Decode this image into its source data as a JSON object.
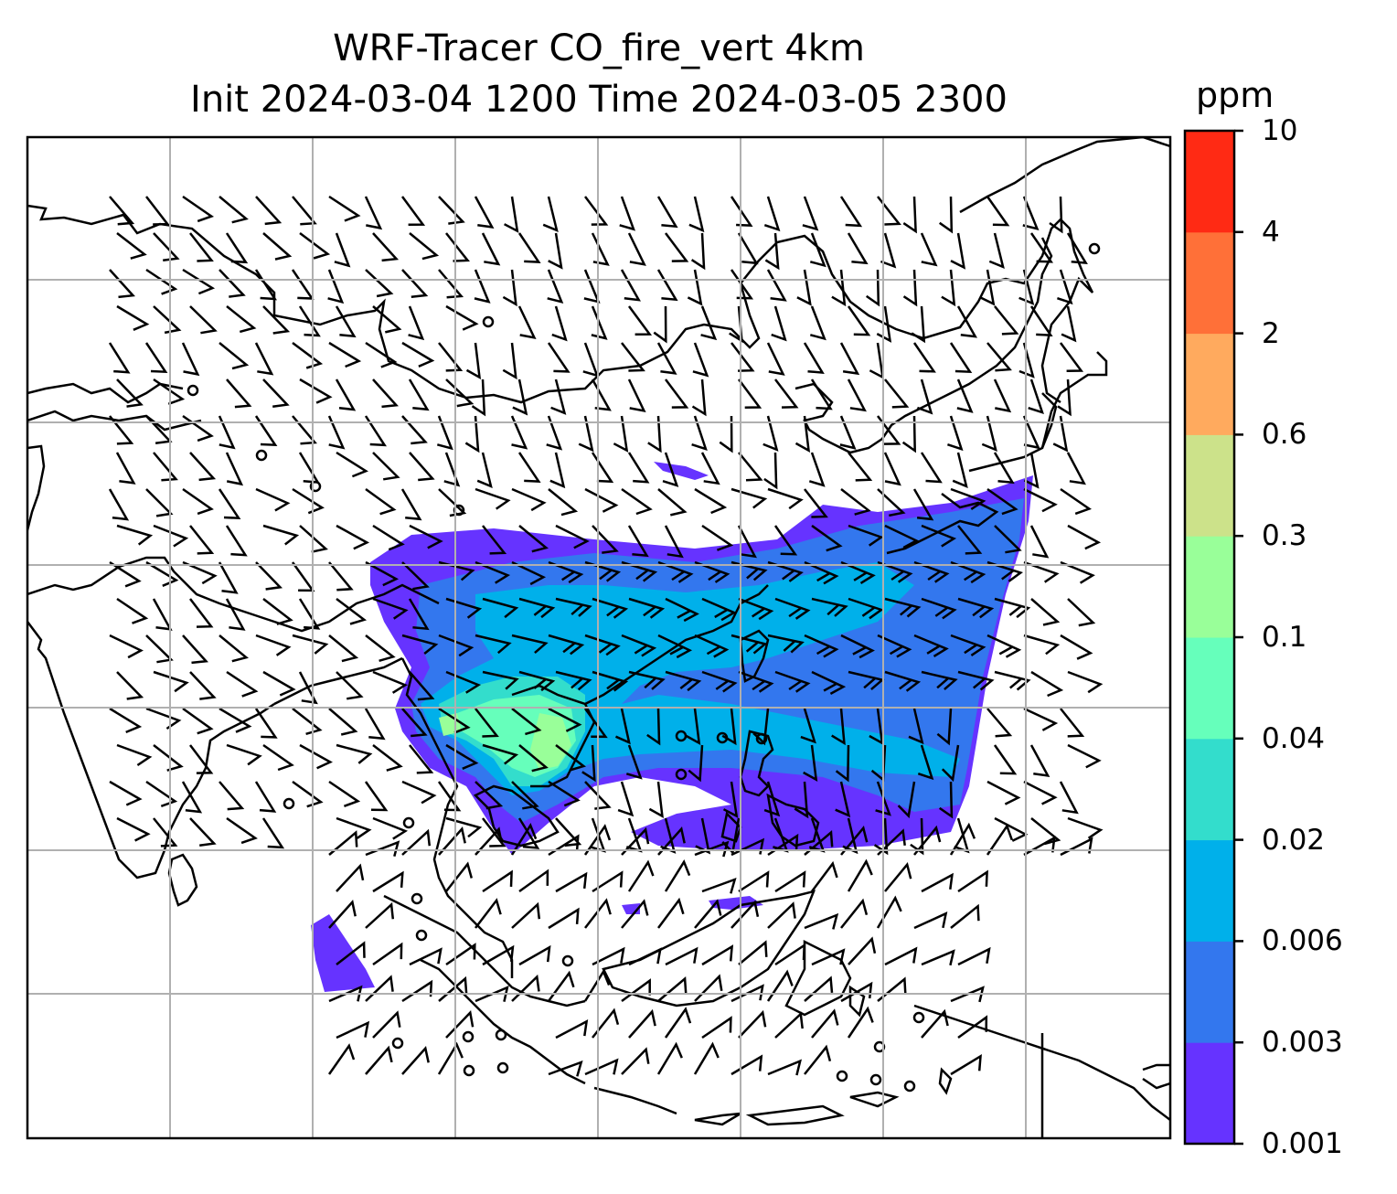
{
  "title": {
    "line1": "WRF-Tracer CO_fire_vert 4km",
    "line2": "Init 2024-03-04 1200 Time 2024-03-05 2300"
  },
  "colorbar": {
    "unit": "ppm",
    "levels": [
      "0.001",
      "0.003",
      "0.006",
      "0.02",
      "0.04",
      "0.1",
      "0.3",
      "0.6",
      "2",
      "4",
      "10"
    ],
    "colors": [
      "#6633ff",
      "#3377ee",
      "#00b0ea",
      "#33ddcc",
      "#66ffbb",
      "#99ff99",
      "#cce28a",
      "#ffaa5e",
      "#ff7038",
      "#ff2a14"
    ]
  },
  "map": {
    "region": "South and Southeast Asia",
    "gridlines": true,
    "field": "CO_fire_vert tracer concentration with wind barbs"
  }
}
